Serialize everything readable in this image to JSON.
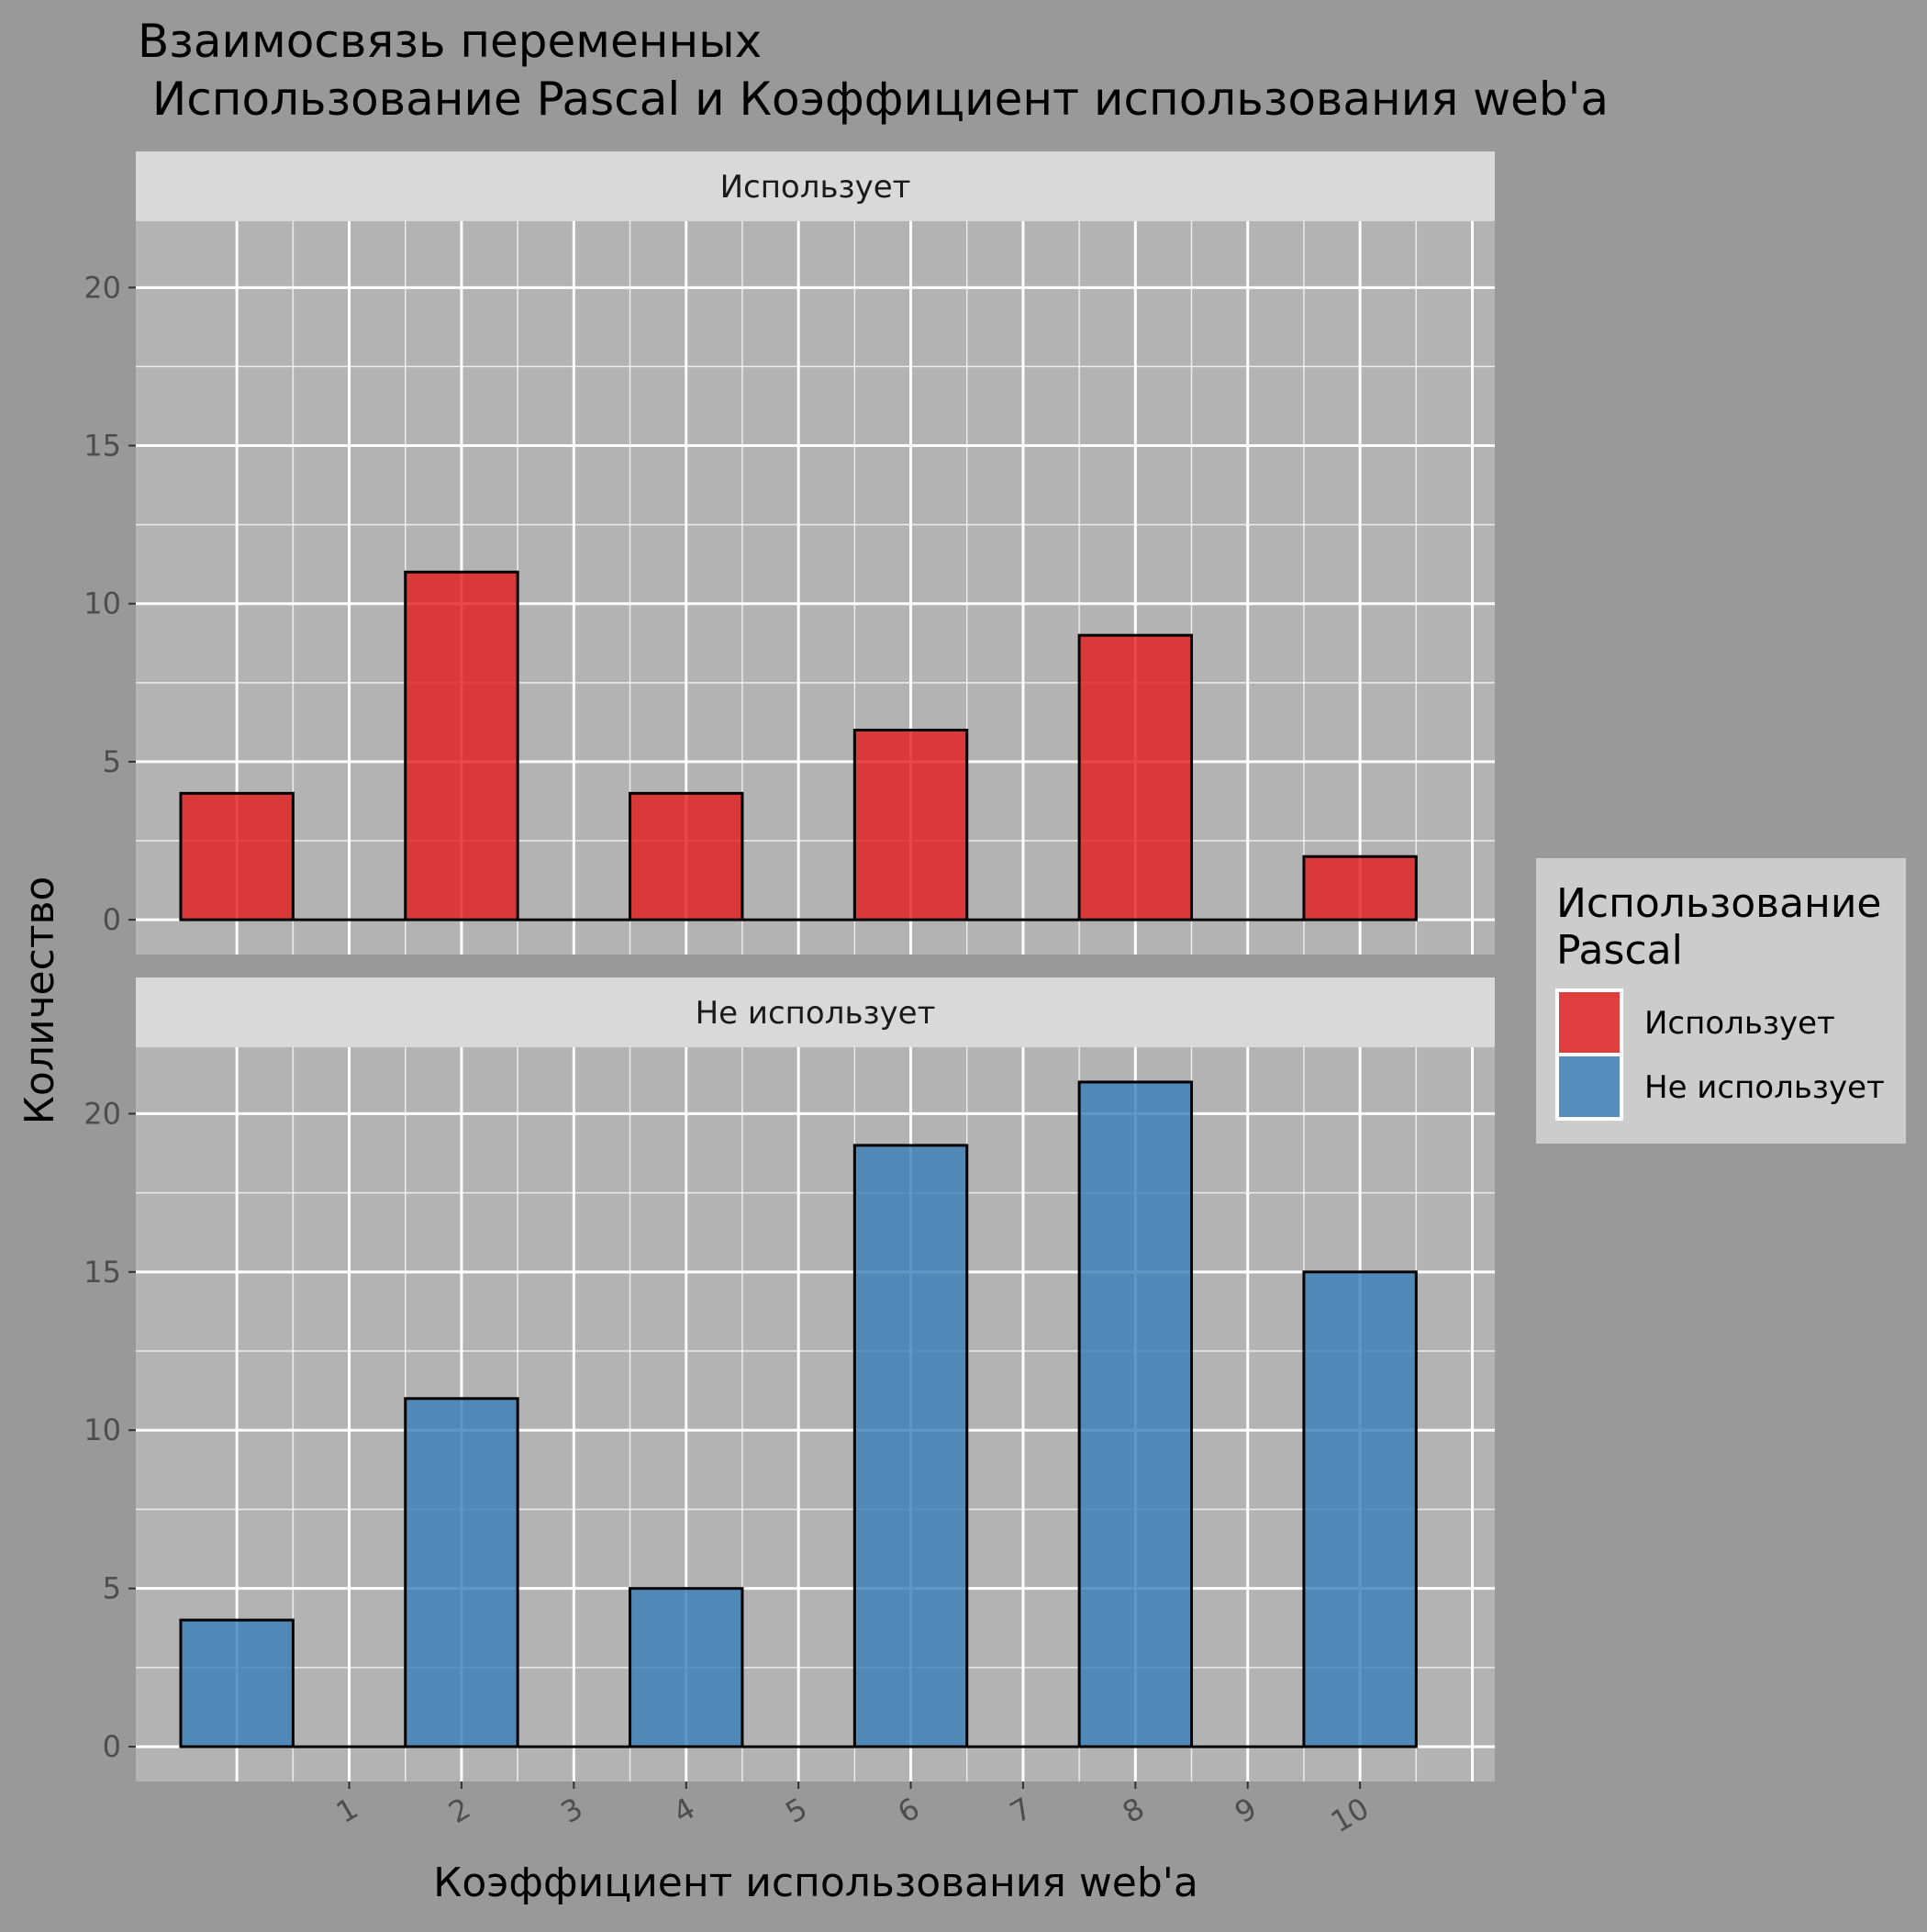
{
  "chart_data": {
    "type": "bar",
    "title_lines": [
      "Взаимосвязь переменных",
      " Использование Pascal и Коэффициент использования web'a"
    ],
    "xlabel": "Коэффициент использования web'a",
    "ylabel": "Количество",
    "x_ticks": [
      1,
      2,
      3,
      4,
      5,
      6,
      7,
      8,
      9,
      10
    ],
    "y_ticks": [
      0,
      5,
      10,
      15,
      20
    ],
    "xlim": [
      -0.9,
      11.2
    ],
    "ylim": [
      -1.1,
      22.1
    ],
    "bin_width": 1,
    "bins": [
      [
        -0.5,
        0.5
      ],
      [
        0.5,
        1.5
      ],
      [
        1.5,
        2.5
      ],
      [
        2.5,
        3.5
      ],
      [
        3.5,
        4.5
      ],
      [
        4.5,
        5.5
      ],
      [
        5.5,
        6.5
      ],
      [
        6.5,
        7.5
      ],
      [
        7.5,
        8.5
      ],
      [
        8.5,
        9.5
      ],
      [
        9.5,
        10.5
      ]
    ],
    "grid": true,
    "legend": {
      "title_lines": [
        "Использование",
        "Pascal"
      ],
      "position": "right",
      "items": [
        {
          "label": "Использует",
          "color": "#E41A1C"
        },
        {
          "label": "Не использует",
          "color": "#377EB8"
        }
      ]
    },
    "panels": [
      {
        "strip": "Использует",
        "color": "#E41A1C",
        "values": [
          4,
          0,
          11,
          0,
          4,
          0,
          6,
          0,
          9,
          0,
          2
        ]
      },
      {
        "strip": "Не использует",
        "color": "#377EB8",
        "values": [
          4,
          0,
          11,
          0,
          5,
          0,
          19,
          0,
          21,
          0,
          15
        ]
      }
    ]
  }
}
